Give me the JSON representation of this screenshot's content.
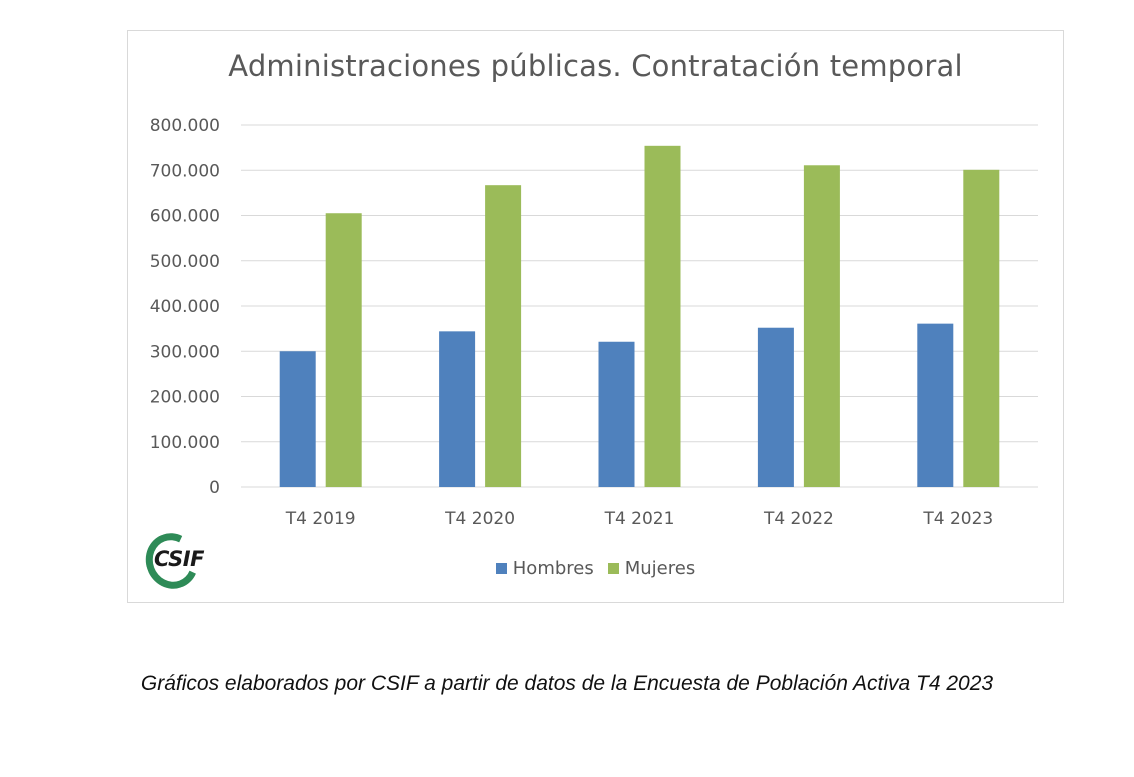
{
  "colors": {
    "hombres": "#4f81bd",
    "mujeres": "#9bbb59",
    "grid": "#d9d9d9",
    "axis_text": "#595959"
  },
  "logo": {
    "text": "CSIF",
    "icon": "csif-logo"
  },
  "caption": "Gráficos elaborados por CSIF a partir de datos de la Encuesta de Población Activa T4 2023",
  "chart_data": {
    "type": "bar",
    "title": "Administraciones públicas. Contratación temporal",
    "xlabel": "",
    "ylabel": "",
    "categories": [
      "T4 2019",
      "T4 2020",
      "T4 2021",
      "T4 2022",
      "T4 2023"
    ],
    "series": [
      {
        "name": "Hombres",
        "values": [
          300000,
          344000,
          321000,
          352000,
          361000
        ]
      },
      {
        "name": "Mujeres",
        "values": [
          605000,
          667000,
          754000,
          711000,
          701000
        ]
      }
    ],
    "ylim": [
      0,
      800000
    ],
    "yticks": [
      0,
      100000,
      200000,
      300000,
      400000,
      500000,
      600000,
      700000,
      800000
    ],
    "ytick_labels": [
      "0",
      "100.000",
      "200.000",
      "300.000",
      "400.000",
      "500.000",
      "600.000",
      "700.000",
      "800.000"
    ],
    "grid": true,
    "legend_position": "bottom"
  }
}
